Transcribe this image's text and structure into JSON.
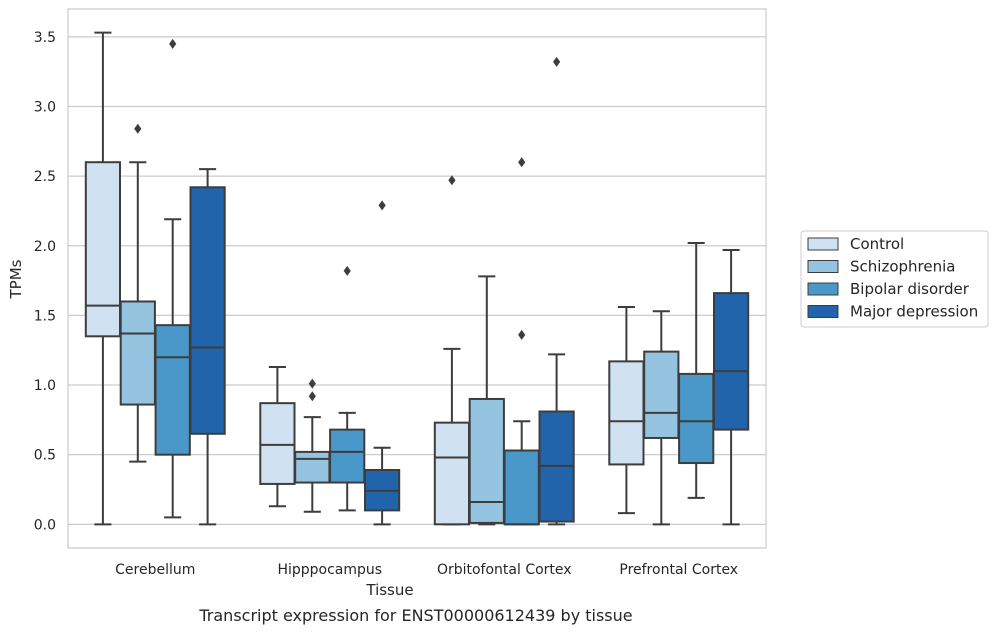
{
  "caption": "Transcript expression for ENST00000612439 by tissue",
  "chart_data": {
    "type": "boxplot",
    "xlabel": "Tissue",
    "ylabel": "TPMs",
    "ylim": [
      -0.17,
      3.7
    ],
    "yticks": [
      0.0,
      0.5,
      1.0,
      1.5,
      2.0,
      2.5,
      3.0,
      3.5
    ],
    "ytick_labels": [
      "0.0",
      "0.5",
      "1.0",
      "1.5",
      "2.0",
      "2.5",
      "3.0",
      "3.5"
    ],
    "grid": "horizontal",
    "legend_position": "right",
    "categories": [
      "Cerebellum",
      "Hipppocampus",
      "Orbitofontal Cortex",
      "Prefrontal Cortex"
    ],
    "series": [
      {
        "name": "Control",
        "color": "#d0e1f2",
        "boxes": [
          {
            "whislo": 0.0,
            "q1": 1.35,
            "med": 1.57,
            "q3": 2.6,
            "whishi": 3.53,
            "fliers": []
          },
          {
            "whislo": 0.13,
            "q1": 0.29,
            "med": 0.57,
            "q3": 0.87,
            "whishi": 1.13,
            "fliers": []
          },
          {
            "whislo": 0.0,
            "q1": 0.0,
            "med": 0.48,
            "q3": 0.73,
            "whishi": 1.26,
            "fliers": [
              2.47
            ]
          },
          {
            "whislo": 0.08,
            "q1": 0.43,
            "med": 0.74,
            "q3": 1.17,
            "whishi": 1.56,
            "fliers": []
          }
        ]
      },
      {
        "name": "Schizophrenia",
        "color": "#94c4df",
        "boxes": [
          {
            "whislo": 0.45,
            "q1": 0.86,
            "med": 1.37,
            "q3": 1.6,
            "whishi": 2.6,
            "fliers": [
              2.84
            ]
          },
          {
            "whislo": 0.09,
            "q1": 0.3,
            "med": 0.47,
            "q3": 0.52,
            "whishi": 0.77,
            "fliers": [
              1.01,
              0.92
            ]
          },
          {
            "whislo": 0.0,
            "q1": 0.01,
            "med": 0.16,
            "q3": 0.9,
            "whishi": 1.78,
            "fliers": []
          },
          {
            "whislo": 0.0,
            "q1": 0.62,
            "med": 0.8,
            "q3": 1.24,
            "whishi": 1.53,
            "fliers": []
          }
        ]
      },
      {
        "name": "Bipolar disorder",
        "color": "#4a98c9",
        "boxes": [
          {
            "whislo": 0.05,
            "q1": 0.5,
            "med": 1.2,
            "q3": 1.43,
            "whishi": 2.19,
            "fliers": [
              3.45
            ]
          },
          {
            "whislo": 0.1,
            "q1": 0.3,
            "med": 0.52,
            "q3": 0.68,
            "whishi": 0.8,
            "fliers": [
              1.82
            ]
          },
          {
            "whislo": 0.0,
            "q1": 0.0,
            "med": 0.0,
            "q3": 0.53,
            "whishi": 0.74,
            "fliers": [
              1.36,
              2.6
            ]
          },
          {
            "whislo": 0.19,
            "q1": 0.44,
            "med": 0.74,
            "q3": 1.08,
            "whishi": 2.02,
            "fliers": []
          }
        ]
      },
      {
        "name": "Major depression",
        "color": "#2164ab",
        "boxes": [
          {
            "whislo": 0.0,
            "q1": 0.65,
            "med": 1.27,
            "q3": 2.42,
            "whishi": 2.55,
            "fliers": []
          },
          {
            "whislo": 0.0,
            "q1": 0.1,
            "med": 0.24,
            "q3": 0.39,
            "whishi": 0.55,
            "fliers": [
              2.29
            ]
          },
          {
            "whislo": 0.0,
            "q1": 0.02,
            "med": 0.42,
            "q3": 0.81,
            "whishi": 1.22,
            "fliers": [
              3.32
            ]
          },
          {
            "whislo": 0.0,
            "q1": 0.68,
            "med": 1.1,
            "q3": 1.66,
            "whishi": 1.97,
            "fliers": []
          }
        ]
      }
    ]
  }
}
